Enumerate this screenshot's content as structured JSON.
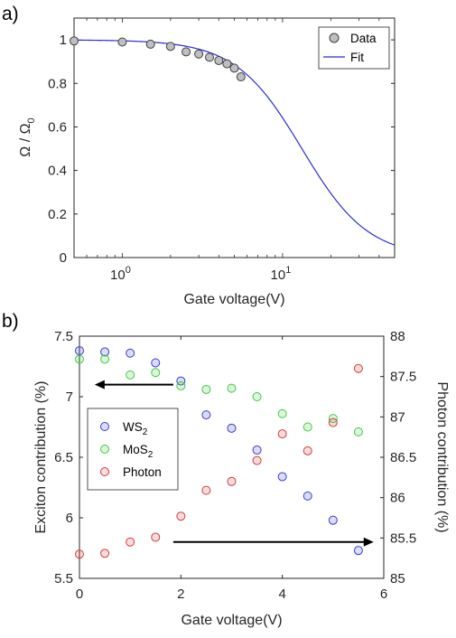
{
  "chart_data": [
    {
      "type": "scatter",
      "panel_label": "a)",
      "xlabel": "Gate voltage(V)",
      "ylabel": "Ω / Ω",
      "ylabel_sub": "0",
      "xscale": "log",
      "xlim": [
        0.5,
        50
      ],
      "ylim": [
        0,
        1.1
      ],
      "x_ticks": [
        {
          "value": 1,
          "base": "10",
          "exp": "0"
        },
        {
          "value": 10,
          "base": "10",
          "exp": "1"
        }
      ],
      "y_ticks": [
        "0",
        "0.2",
        "0.4",
        "0.6",
        "0.8",
        "1"
      ],
      "legend": {
        "position": "top-right",
        "entries": [
          "Data",
          "Fit"
        ]
      },
      "series": [
        {
          "name": "Data",
          "kind": "markers",
          "color": "#404040",
          "x": [
            0.5,
            1.0,
            1.5,
            2.0,
            2.5,
            3.0,
            3.5,
            4.0,
            4.5,
            5.0,
            5.5
          ],
          "y": [
            0.995,
            0.99,
            0.98,
            0.97,
            0.945,
            0.935,
            0.92,
            0.905,
            0.89,
            0.87,
            0.83
          ]
        },
        {
          "name": "Fit",
          "kind": "line",
          "color": "#2b2bdb",
          "model": {
            "V0": 13.2,
            "p": 2.1
          }
        }
      ]
    },
    {
      "type": "scatter",
      "panel_label": "b)",
      "xlabel": "Gate voltage(V)",
      "ylabel_left": "Exciton contribution (%)",
      "ylabel_right": "Photon contribution (%)",
      "xlim": [
        0,
        6
      ],
      "ylim_left": [
        5.5,
        7.5
      ],
      "ylim_right": [
        85,
        88
      ],
      "x_ticks": [
        "0",
        "2",
        "4",
        "6"
      ],
      "y_ticks_left": [
        "5.5",
        "6",
        "6.5",
        "7",
        "7.5"
      ],
      "y_ticks_right": [
        "85",
        "85.5",
        "86",
        "86.5",
        "87",
        "87.5",
        "88"
      ],
      "legend": {
        "position": "middle-left",
        "entries": [
          {
            "base": "WS",
            "sub": "2"
          },
          {
            "base": "MoS",
            "sub": "2"
          },
          {
            "base": "Photon",
            "sub": ""
          }
        ]
      },
      "x": [
        0,
        0.5,
        1.0,
        1.5,
        2.0,
        2.5,
        3.0,
        3.5,
        4.0,
        4.5,
        5.0,
        5.5
      ],
      "series": [
        {
          "name": "WS2",
          "axis": "left",
          "color": "#3b3bd6",
          "values": [
            7.38,
            7.37,
            7.36,
            7.28,
            7.13,
            6.85,
            6.74,
            6.56,
            6.34,
            6.18,
            5.98,
            5.73
          ]
        },
        {
          "name": "MoS2",
          "axis": "left",
          "color": "#3fcc3f",
          "values": [
            7.31,
            7.31,
            7.18,
            7.2,
            7.09,
            7.06,
            7.07,
            7.0,
            6.86,
            6.75,
            6.82,
            6.71
          ]
        },
        {
          "name": "Photon",
          "axis": "right",
          "color": "#d63b3b",
          "values": [
            85.3,
            85.31,
            85.45,
            85.51,
            85.77,
            86.09,
            86.2,
            86.46,
            86.79,
            86.58,
            86.93,
            87.6
          ]
        }
      ],
      "arrows": [
        {
          "direction": "left",
          "from": {
            "x": 1.85,
            "y": 7.1
          },
          "to": {
            "x": 0.3,
            "y": 7.1
          },
          "axis": "left"
        },
        {
          "direction": "right",
          "from": {
            "x": 1.85,
            "y": 85.45
          },
          "to": {
            "x": 5.8,
            "y": 85.45
          },
          "axis": "right"
        }
      ]
    }
  ]
}
